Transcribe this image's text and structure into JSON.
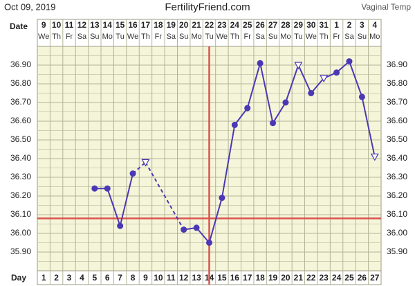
{
  "chart_data": {
    "type": "line",
    "title": "FertilityFriend.com",
    "date": "Oct 09, 2019",
    "subtitle": "Vaginal Temp",
    "date_row_label": "Date",
    "day_row_label": "Day",
    "dates": [
      9,
      10,
      11,
      12,
      13,
      14,
      15,
      16,
      17,
      18,
      19,
      20,
      21,
      22,
      23,
      24,
      25,
      26,
      27,
      28,
      29,
      30,
      31,
      1,
      2,
      3,
      4
    ],
    "weekdays": [
      "We",
      "Th",
      "Fr",
      "Sa",
      "Su",
      "Mo",
      "Tu",
      "We",
      "Th",
      "Fr",
      "Sa",
      "Su",
      "Mo",
      "Tu",
      "We",
      "Th",
      "Fr",
      "Sa",
      "Su",
      "Mo",
      "Tu",
      "We",
      "Th",
      "Fr",
      "Sa",
      "Su",
      "Mo"
    ],
    "categories": [
      1,
      2,
      3,
      4,
      5,
      6,
      7,
      8,
      9,
      10,
      11,
      12,
      13,
      14,
      15,
      16,
      17,
      18,
      19,
      20,
      21,
      22,
      23,
      24,
      25,
      26,
      27
    ],
    "series": [
      {
        "color": "#4a38b5",
        "values": [
          null,
          null,
          null,
          null,
          36.24,
          36.24,
          36.04,
          36.32,
          36.38,
          null,
          null,
          36.02,
          36.03,
          35.95,
          36.19,
          36.58,
          36.67,
          36.91,
          36.59,
          36.7,
          36.9,
          36.75,
          36.83,
          36.86,
          36.92,
          36.73,
          36.41
        ],
        "markers": [
          null,
          null,
          null,
          null,
          "circle",
          "circle",
          "circle",
          "circle",
          "open-triangle",
          null,
          null,
          "circle",
          "circle",
          "circle",
          "circle",
          "circle",
          "circle",
          "circle",
          "circle",
          "circle",
          "open-triangle",
          "circle",
          "open-triangle",
          "circle",
          "circle",
          "circle",
          "open-triangle"
        ],
        "line_styles": [
          null,
          null,
          null,
          null,
          null,
          "solid",
          "solid",
          "solid",
          "dashed",
          null,
          null,
          "dashed",
          "solid",
          "solid",
          "solid",
          "solid",
          "solid",
          "solid",
          "solid",
          "solid",
          "solid",
          "solid",
          "solid",
          "solid",
          "solid",
          "solid",
          "solid"
        ]
      }
    ],
    "coverline": 36.08,
    "ovulation_day": 14,
    "reference_color": "#d9534f",
    "ylim": [
      35.8,
      37.0
    ],
    "yticks": [
      {
        "value": 35.9,
        "label": "35.90"
      },
      {
        "value": 36.0,
        "label": "36.00"
      },
      {
        "value": 36.1,
        "label": "36.10"
      },
      {
        "value": 36.2,
        "label": "36.20"
      },
      {
        "value": 36.3,
        "label": "36.30"
      },
      {
        "value": 36.4,
        "label": "36.40"
      },
      {
        "value": 36.5,
        "label": "36.50"
      },
      {
        "value": 36.6,
        "label": "36.60"
      },
      {
        "value": 36.7,
        "label": "36.70"
      },
      {
        "value": 36.8,
        "label": "36.80"
      },
      {
        "value": 36.9,
        "label": "36.90"
      }
    ],
    "yminorticks": [
      35.85,
      35.95,
      36.05,
      36.15,
      36.25,
      36.35,
      36.45,
      36.55,
      36.65,
      36.75,
      36.85,
      36.95
    ],
    "grid": true
  }
}
